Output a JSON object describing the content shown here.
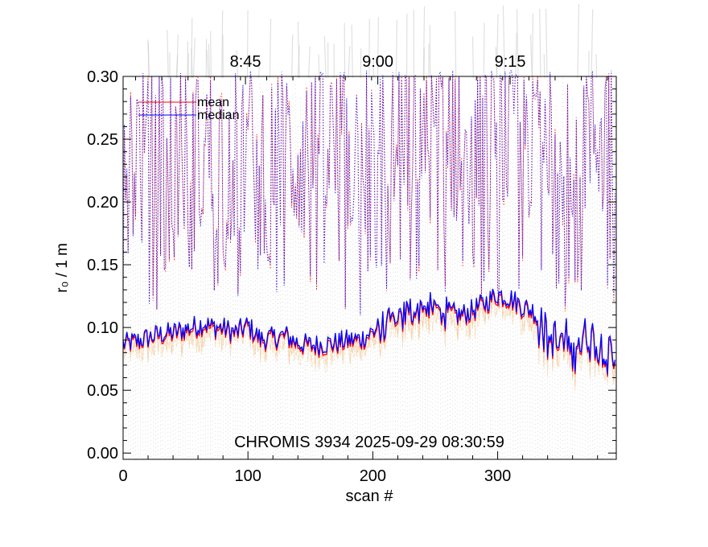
{
  "chart_data": {
    "type": "line",
    "title": "CHROMIS 3934 2025-09-29 08:30:59",
    "xlabel": "scan #",
    "ylabel": "r₀ / 1 m",
    "xlim": [
      0,
      395
    ],
    "ylim": [
      -0.005,
      0.3
    ],
    "x_ticks": [
      "0",
      "100",
      "200",
      "300"
    ],
    "x_tick_values": [
      0,
      100,
      200,
      300
    ],
    "y_ticks": [
      "0.00",
      "0.05",
      "0.10",
      "0.15",
      "0.20",
      "0.25",
      "0.30"
    ],
    "y_tick_values": [
      0.0,
      0.05,
      0.1,
      0.15,
      0.2,
      0.25,
      0.3
    ],
    "top_axis_ticks": [
      "8:45",
      "9:00",
      "9:15"
    ],
    "top_axis_scan_values": [
      98,
      204,
      310
    ],
    "legend": [
      {
        "name": "mean",
        "color": "#ff0000"
      },
      {
        "name": "median",
        "color": "#0000ff"
      }
    ],
    "legend_position": "top-left",
    "colors": {
      "mean": "#ff0000",
      "median": "#0000ff",
      "background_traces": "#d8d8d8",
      "subfield_dots": "#999999"
    },
    "series": [
      {
        "name": "mean",
        "anchors_x": [
          0,
          10,
          20,
          30,
          40,
          50,
          60,
          65,
          70,
          80,
          90,
          100,
          110,
          120,
          130,
          140,
          150,
          160,
          170,
          180,
          190,
          200,
          210,
          215,
          220,
          230,
          240,
          250,
          260,
          270,
          280,
          290,
          300,
          310,
          320,
          330,
          340,
          350,
          360,
          370,
          380,
          390,
          395
        ],
        "anchors_y": [
          0.086,
          0.087,
          0.091,
          0.093,
          0.094,
          0.097,
          0.1,
          0.102,
          0.099,
          0.098,
          0.094,
          0.1,
          0.089,
          0.09,
          0.092,
          0.086,
          0.084,
          0.085,
          0.086,
          0.088,
          0.089,
          0.095,
          0.098,
          0.104,
          0.103,
          0.112,
          0.115,
          0.113,
          0.11,
          0.108,
          0.112,
          0.118,
          0.125,
          0.122,
          0.115,
          0.111,
          0.09,
          0.086,
          0.082,
          0.089,
          0.085,
          0.078,
          0.064
        ]
      },
      {
        "name": "median",
        "anchors_x": [
          0,
          10,
          20,
          30,
          40,
          50,
          60,
          65,
          70,
          80,
          90,
          100,
          110,
          120,
          130,
          140,
          150,
          160,
          170,
          180,
          190,
          200,
          210,
          215,
          220,
          230,
          240,
          250,
          260,
          270,
          280,
          290,
          300,
          310,
          320,
          330,
          340,
          350,
          360,
          370,
          380,
          390,
          395
        ],
        "anchors_y": [
          0.086,
          0.088,
          0.091,
          0.094,
          0.095,
          0.098,
          0.101,
          0.103,
          0.1,
          0.099,
          0.095,
          0.101,
          0.09,
          0.091,
          0.093,
          0.087,
          0.085,
          0.086,
          0.087,
          0.089,
          0.09,
          0.096,
          0.099,
          0.105,
          0.104,
          0.113,
          0.116,
          0.114,
          0.111,
          0.109,
          0.113,
          0.119,
          0.126,
          0.123,
          0.116,
          0.112,
          0.091,
          0.087,
          0.083,
          0.09,
          0.086,
          0.079,
          0.065
        ]
      }
    ],
    "dotted_max_traces": [
      {
        "name": "mean-max",
        "color": "#ff0000"
      },
      {
        "name": "median-max",
        "color": "#0000ff"
      }
    ]
  }
}
